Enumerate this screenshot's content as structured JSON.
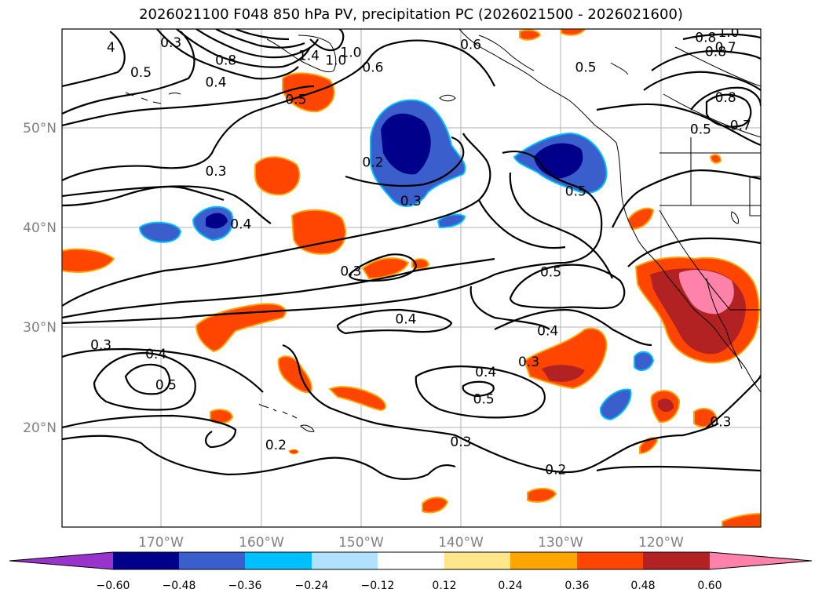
{
  "title": "2026021100 F048 850 hPa PV, precipitation PC (2026021500 - 2026021600)",
  "map": {
    "lat_labels": [
      "50°N",
      "40°N",
      "30°N",
      "20°N"
    ],
    "lon_labels": [
      "170°W",
      "160°W",
      "150°W",
      "140°W",
      "130°W",
      "120°W"
    ],
    "contour_labels": [
      {
        "text": "0.3",
        "lon": -169,
        "lat": 58.5
      },
      {
        "text": "0.5",
        "lon": -172,
        "lat": 55.5
      },
      {
        "text": "4",
        "lon": -175,
        "lat": 58
      },
      {
        "text": "0.8",
        "lon": -163.5,
        "lat": 56.7
      },
      {
        "text": "0.4",
        "lon": -164.5,
        "lat": 54.5
      },
      {
        "text": "0.5",
        "lon": -156.5,
        "lat": 52.8
      },
      {
        "text": "1.4",
        "lon": -155.2,
        "lat": 57.2
      },
      {
        "text": "1.0",
        "lon": -152.5,
        "lat": 56.7
      },
      {
        "text": "1.0",
        "lon": -151,
        "lat": 57.5
      },
      {
        "text": "0.6",
        "lon": -148.8,
        "lat": 56
      },
      {
        "text": "0.6",
        "lon": -139,
        "lat": 58.3
      },
      {
        "text": "0.5",
        "lon": -127.5,
        "lat": 56
      },
      {
        "text": "0.8",
        "lon": -115.5,
        "lat": 59
      },
      {
        "text": "1.0",
        "lon": -113.2,
        "lat": 59.5
      },
      {
        "text": "0.7",
        "lon": -113.5,
        "lat": 58
      },
      {
        "text": "0.8",
        "lon": -114.5,
        "lat": 57.6
      },
      {
        "text": "0.8",
        "lon": -113.5,
        "lat": 53
      },
      {
        "text": "0.7",
        "lon": -112,
        "lat": 50.2
      },
      {
        "text": "0.5",
        "lon": -116,
        "lat": 49.8
      },
      {
        "text": "0.3",
        "lon": -164.5,
        "lat": 45.6
      },
      {
        "text": "0.2",
        "lon": -148.8,
        "lat": 46.5
      },
      {
        "text": "0.3",
        "lon": -145,
        "lat": 42.6
      },
      {
        "text": "0.5",
        "lon": -128.5,
        "lat": 43.6
      },
      {
        "text": "0.4",
        "lon": -162,
        "lat": 40.3
      },
      {
        "text": "0.3",
        "lon": -151,
        "lat": 35.6
      },
      {
        "text": "0.5",
        "lon": -131,
        "lat": 35.5
      },
      {
        "text": "0.4",
        "lon": -145.5,
        "lat": 30.8
      },
      {
        "text": "0.4",
        "lon": -131.3,
        "lat": 29.6
      },
      {
        "text": "0.3",
        "lon": -176,
        "lat": 28.2
      },
      {
        "text": "0.4",
        "lon": -170.5,
        "lat": 27.3
      },
      {
        "text": "0.5",
        "lon": -169.5,
        "lat": 24.2
      },
      {
        "text": "0.4",
        "lon": -137.5,
        "lat": 25.5
      },
      {
        "text": "0.3",
        "lon": -133.2,
        "lat": 26.5
      },
      {
        "text": "0.5",
        "lon": -137.7,
        "lat": 22.8
      },
      {
        "text": "0.3",
        "lon": -140,
        "lat": 18.5
      },
      {
        "text": "0.2",
        "lon": -158.5,
        "lat": 18.2
      },
      {
        "text": "0.2",
        "lon": -130.5,
        "lat": 15.7
      },
      {
        "text": "0.3",
        "lon": -114,
        "lat": 20.5
      }
    ]
  },
  "colorbar": {
    "labels": [
      "−0.60",
      "−0.48",
      "−0.36",
      "−0.24",
      "−0.12",
      "0.12",
      "0.24",
      "0.36",
      "0.48",
      "0.60"
    ],
    "colors": [
      "#9933cc",
      "#00008b",
      "#3a5fcd",
      "#00bfff",
      "#b0e2ff",
      "#ffffff",
      "#ffe68a",
      "#ffa500",
      "#ff4500",
      "#b22222",
      "#ff82ab"
    ]
  }
}
